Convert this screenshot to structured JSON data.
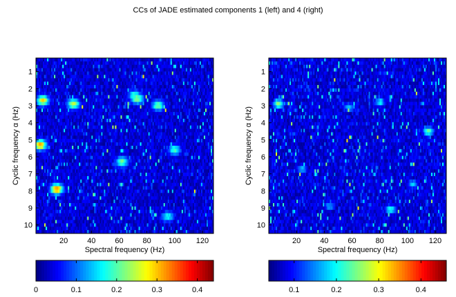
{
  "figure_title": "CCs of JADE estimated components 1 (left) and 4 (right)",
  "chart_data": [
    {
      "type": "heatmap",
      "panel": "left",
      "xlabel": "Spectral frequency (Hz)",
      "ylabel": "Cyclic frequency α (Hz)",
      "x_ticks": [
        "20",
        "40",
        "60",
        "80",
        "100",
        "120"
      ],
      "y_ticks": [
        "1",
        "2",
        "3",
        "4",
        "5",
        "6",
        "7",
        "8",
        "9",
        "10"
      ],
      "xlim": [
        0,
        128
      ],
      "ylim": [
        0.2,
        10.5
      ],
      "colormap": "jet",
      "colorbar": {
        "range": [
          0,
          0.44
        ],
        "ticks": [
          "0",
          "0.1",
          "0.2",
          "0.3",
          "0.4"
        ]
      },
      "hot_spots": [
        {
          "x": 5,
          "y": 2.7,
          "v": 0.27
        },
        {
          "x": 27,
          "y": 2.9,
          "v": 0.24
        },
        {
          "x": 73,
          "y": 2.6,
          "v": 0.22
        },
        {
          "x": 71,
          "y": 2.4,
          "v": 0.18
        },
        {
          "x": 3,
          "y": 5.3,
          "v": 0.3
        },
        {
          "x": 15,
          "y": 7.9,
          "v": 0.32
        },
        {
          "x": 88,
          "y": 3.0,
          "v": 0.2
        },
        {
          "x": 100,
          "y": 5.6,
          "v": 0.18
        },
        {
          "x": 62,
          "y": 6.3,
          "v": 0.2
        },
        {
          "x": 95,
          "y": 9.5,
          "v": 0.16
        }
      ]
    },
    {
      "type": "heatmap",
      "panel": "right",
      "xlabel": "Spectral frequency (Hz)",
      "ylabel": "Cyclic frequency α (Hz)",
      "x_ticks": [
        "20",
        "40",
        "60",
        "80",
        "100",
        "120"
      ],
      "y_ticks": [
        "1",
        "2",
        "3",
        "4",
        "5",
        "6",
        "7",
        "8",
        "9",
        "10"
      ],
      "xlim": [
        0,
        128
      ],
      "ylim": [
        0.2,
        10.5
      ],
      "colormap": "jet",
      "colorbar": {
        "range": [
          0.04,
          0.46
        ],
        "ticks": [
          "0.1",
          "0.2",
          "0.3",
          "0.4"
        ]
      },
      "hot_spots": [
        {
          "x": 7,
          "y": 2.9,
          "v": 0.24
        },
        {
          "x": 115,
          "y": 4.5,
          "v": 0.22
        },
        {
          "x": 80,
          "y": 2.8,
          "v": 0.18
        },
        {
          "x": 88,
          "y": 9.1,
          "v": 0.2
        },
        {
          "x": 58,
          "y": 3.1,
          "v": 0.16
        },
        {
          "x": 24,
          "y": 6.7,
          "v": 0.16
        },
        {
          "x": 104,
          "y": 7.6,
          "v": 0.16
        },
        {
          "x": 44,
          "y": 8.9,
          "v": 0.15
        }
      ]
    }
  ]
}
